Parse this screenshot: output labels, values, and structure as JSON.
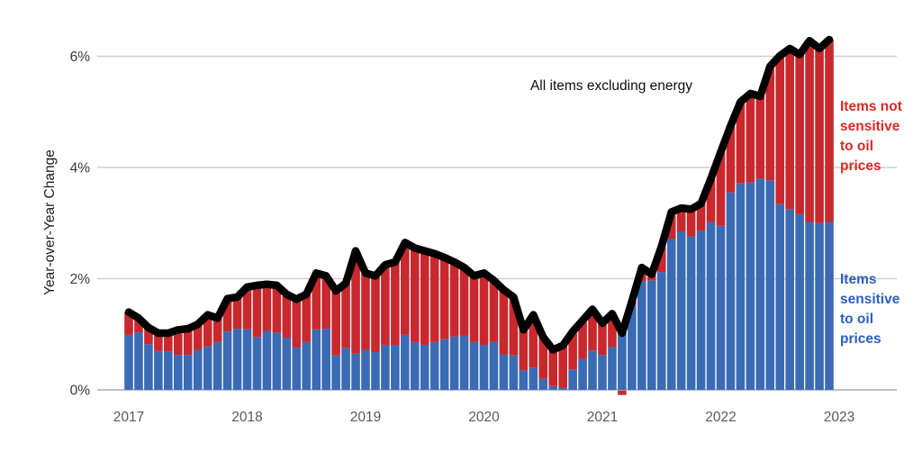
{
  "chart_data": {
    "type": "stacked-bar+line",
    "annotation": "All items excluding energy",
    "ylabel": "Year-over-Year Change",
    "x_tick_labels": [
      "2017",
      "2018",
      "2019",
      "2020",
      "2021",
      "2022",
      "2023"
    ],
    "y_ticks": [
      {
        "label": "0%",
        "value": 0
      },
      {
        "label": "2%",
        "value": 2
      },
      {
        "label": "4%",
        "value": 4
      },
      {
        "label": "6%",
        "value": 6
      }
    ],
    "ylim": [
      -0.3,
      6.6
    ],
    "x_start": "2017-01",
    "x_frequency": "monthly",
    "units": "percent",
    "series": [
      {
        "name": "Items sensitive to oil prices",
        "role": "bar-stack-bottom",
        "color": "#3A6BB4",
        "values": [
          0.99,
          1.03,
          0.82,
          0.7,
          0.69,
          0.63,
          0.63,
          0.72,
          0.78,
          0.86,
          1.05,
          1.1,
          1.09,
          0.95,
          1.06,
          1.03,
          0.94,
          0.76,
          0.86,
          1.09,
          1.1,
          0.62,
          0.75,
          0.65,
          0.72,
          0.68,
          0.81,
          0.81,
          0.99,
          0.86,
          0.81,
          0.86,
          0.91,
          0.96,
          0.98,
          0.86,
          0.81,
          0.86,
          0.64,
          0.62,
          0.35,
          0.4,
          0.2,
          0.07,
          0.04,
          0.37,
          0.56,
          0.71,
          0.63,
          0.77,
          1.1,
          1.52,
          1.95,
          1.97,
          2.12,
          2.72,
          2.85,
          2.76,
          2.86,
          3.02,
          2.95,
          3.55,
          3.72,
          3.73,
          3.8,
          3.77,
          3.34,
          3.25,
          3.16,
          3.02,
          3.0,
          3.02
        ]
      },
      {
        "name": "Items not sensitive to oil prices",
        "role": "bar-stack-top",
        "color": "#C9282C",
        "values": [
          0.41,
          0.26,
          0.3,
          0.32,
          0.33,
          0.45,
          0.47,
          0.46,
          0.57,
          0.43,
          0.59,
          0.57,
          0.76,
          0.93,
          0.84,
          0.85,
          0.78,
          0.87,
          0.86,
          1.01,
          0.95,
          1.16,
          1.17,
          1.85,
          1.38,
          1.37,
          1.44,
          1.49,
          1.66,
          1.69,
          1.69,
          1.59,
          1.47,
          1.34,
          1.22,
          1.19,
          1.29,
          1.11,
          1.16,
          1.05,
          0.73,
          0.95,
          0.75,
          0.65,
          0.76,
          0.68,
          0.69,
          0.74,
          0.57,
          0.6,
          -0.08,
          0.08,
          0.25,
          0.11,
          0.46,
          0.48,
          0.42,
          0.49,
          0.49,
          0.78,
          1.33,
          1.2,
          1.46,
          1.6,
          1.48,
          2.05,
          2.67,
          2.89,
          2.87,
          3.26,
          3.14,
          3.28
        ]
      },
      {
        "name": "All items excluding energy",
        "role": "line",
        "color": "#000000",
        "values": "sum of the two bar series"
      }
    ],
    "right_labels": {
      "not_sensitive": {
        "lines": [
          "Items not",
          "sensitive",
          "to oil",
          "prices"
        ],
        "color": "#D92B26"
      },
      "sensitive": {
        "lines": [
          "Items",
          "sensitive",
          "to oil",
          "prices"
        ],
        "color": "#2D5EC0"
      }
    },
    "grid": {
      "color": "#CFCFCF",
      "zero_line_color": "#ABABAB",
      "legend_position": "right margin"
    }
  }
}
